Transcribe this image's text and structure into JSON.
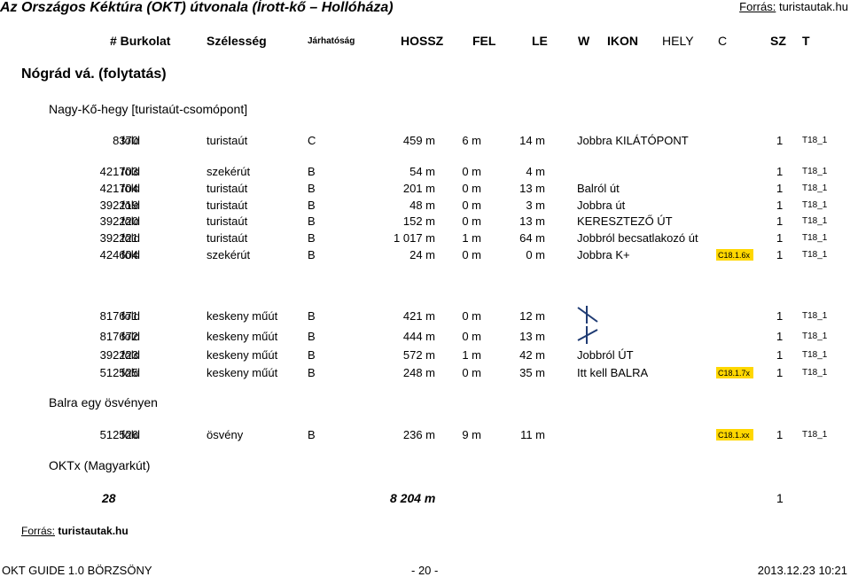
{
  "header": {
    "title": "Az Országos Kéktúra (OKT) útvonala (Írott-kő – Hollóháza)",
    "source_label": "Forrás:",
    "source_site": "turistautak.hu"
  },
  "columns": {
    "num": "# Burkolat",
    "width": "Szélesség",
    "passability": "Járhatóság",
    "length": "HOSSZ",
    "up": "FEL",
    "down": "LE",
    "w": "W",
    "icon": "IKON",
    "place": "HELY",
    "c": "C",
    "sz": "SZ",
    "t": "T"
  },
  "region": "Nógrád vá. (folytatás)",
  "sections": {
    "nagy_ko": "Nagy-Kő-hegy [turistaút-csomópont]",
    "balra": "Balra egy ösvényen",
    "oktx": "OKTx (Magyarkút)"
  },
  "rows": [
    {
      "id": "8370",
      "surface": "föld",
      "type": "turistaút",
      "w": "C",
      "len": "459 m",
      "up": "6 m",
      "down": "14 m",
      "note": "Jobbra KILÁTÓPONT",
      "code": "",
      "one": "1",
      "tn": "T18_1"
    },
    {
      "id": "421703",
      "surface": "föld",
      "type": "szekérút",
      "w": "B",
      "len": "54 m",
      "up": "0 m",
      "down": "4 m",
      "note": "",
      "code": "",
      "one": "1",
      "tn": "T18_1"
    },
    {
      "id": "421704",
      "surface": "föld",
      "type": "turistaút",
      "w": "B",
      "len": "201 m",
      "up": "0 m",
      "down": "13 m",
      "note": "Balról út",
      "code": "",
      "one": "1",
      "tn": "T18_1"
    },
    {
      "id": "392219",
      "surface": "föld",
      "type": "turistaút",
      "w": "B",
      "len": "48 m",
      "up": "0 m",
      "down": "3 m",
      "note": "Jobbra út",
      "code": "",
      "one": "1",
      "tn": "T18_1"
    },
    {
      "id": "392220",
      "surface": "föld",
      "type": "turistaút",
      "w": "B",
      "len": "152 m",
      "up": "0 m",
      "down": "13 m",
      "note": "KERESZTEZŐ ÚT",
      "code": "",
      "one": "1",
      "tn": "T18_1"
    },
    {
      "id": "392221",
      "surface": "föld",
      "type": "turistaút",
      "w": "B",
      "len": "1 017 m",
      "up": "1 m",
      "down": "64 m",
      "note": "Jobbról becsatlakozó út",
      "code": "",
      "one": "1",
      "tn": "T18_1"
    },
    {
      "id": "424604",
      "surface": "föld",
      "type": "szekérút",
      "w": "B",
      "len": "24 m",
      "up": "0 m",
      "down": "0 m",
      "note": "Jobbra K+",
      "code": "C18.1.6x",
      "one": "1",
      "tn": "T18_1"
    },
    {
      "id": "817671",
      "surface": "föld",
      "type": "keskeny műút",
      "w": "B",
      "len": "421 m",
      "up": "0 m",
      "down": "12 m",
      "note": "",
      "code": "",
      "one": "1",
      "tn": "T18_1"
    },
    {
      "id": "817672",
      "surface": "föld",
      "type": "keskeny műút",
      "w": "B",
      "len": "444 m",
      "up": "0 m",
      "down": "13 m",
      "note": "",
      "code": "",
      "one": "1",
      "tn": "T18_1"
    },
    {
      "id": "392223",
      "surface": "föld",
      "type": "keskeny műút",
      "w": "B",
      "len": "572 m",
      "up": "1 m",
      "down": "42 m",
      "note": "Jobbról ÚT",
      "code": "",
      "one": "1",
      "tn": "T18_1"
    },
    {
      "id": "512525",
      "surface": "föld",
      "type": "keskeny műút",
      "w": "B",
      "len": "248 m",
      "up": "0 m",
      "down": "35 m",
      "note": "Itt kell BALRA",
      "code": "C18.1.7x",
      "one": "1",
      "tn": "T18_1"
    },
    {
      "id": "512526",
      "surface": "föld",
      "type": "ösvény",
      "w": "B",
      "len": "236 m",
      "up": "9 m",
      "down": "11 m",
      "note": "",
      "code": "C18.1.xx",
      "one": "1",
      "tn": "T18_1"
    }
  ],
  "totals": {
    "count": "28",
    "length": "8 204 m",
    "one": "1"
  },
  "source_bottom": {
    "label": "Forrás:",
    "site": "turistautak.hu"
  },
  "footer": {
    "left": "OKT GUIDE 1.0  BÖRZSÖNY",
    "center": "- 20 -",
    "right": "2013.12.23  10:21"
  },
  "colors": {
    "code_highlight": "#ffd700",
    "sign_stroke": "#1f3b73"
  },
  "icons": [
    "no-entry-sign-icon"
  ]
}
